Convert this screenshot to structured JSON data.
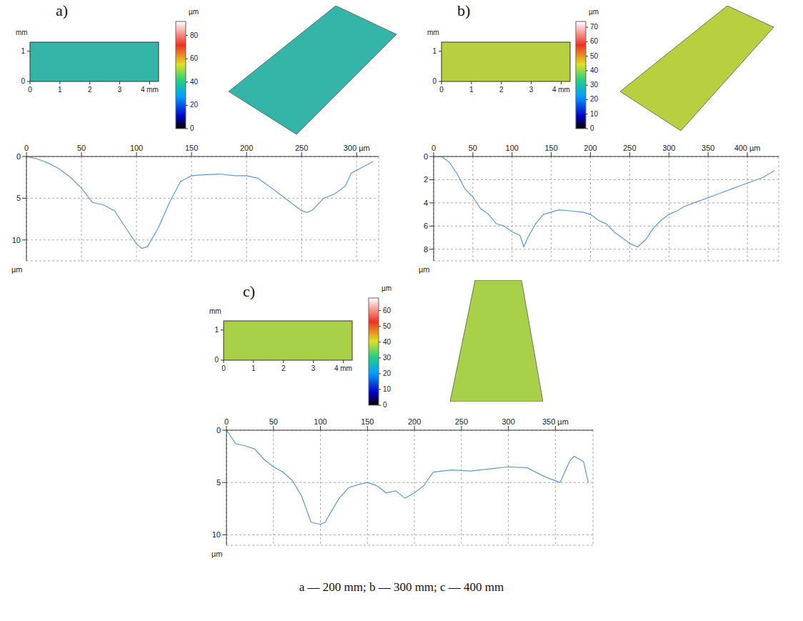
{
  "chart_data": [
    {
      "type": "line",
      "title": "a)",
      "color": "#5b9bd5",
      "grid": true,
      "y_label": "µm",
      "x": [
        0,
        10,
        20,
        30,
        40,
        50,
        60,
        70,
        80,
        90,
        100,
        105,
        110,
        120,
        130,
        140,
        150,
        160,
        175,
        190,
        200,
        210,
        220,
        230,
        240,
        250,
        255,
        260,
        270,
        280,
        290,
        295,
        305,
        315
      ],
      "values": [
        0,
        0.3,
        0.8,
        1.5,
        2.5,
        3.8,
        5.5,
        5.8,
        6.5,
        8.5,
        10.5,
        11,
        10.8,
        8.5,
        5.5,
        3,
        2.3,
        2.2,
        2.1,
        2.3,
        2.3,
        2.6,
        3.5,
        4.5,
        5.5,
        6.5,
        6.7,
        6.4,
        5,
        4.5,
        3.5,
        2,
        1.3,
        0.6
      ],
      "xlim": [
        0,
        320
      ],
      "xticks": [
        0,
        50,
        100,
        150,
        200,
        250,
        {
          "value": 300,
          "label": "300 µm"
        }
      ],
      "ylim": [
        0,
        12.5
      ],
      "yticks": [
        0,
        5,
        10
      ],
      "map": {
        "xlim": [
          0,
          4.3
        ],
        "xticks": [
          0,
          1,
          2,
          3,
          {
            "value": 4,
            "label": "4 mm"
          }
        ],
        "ylim": [
          0,
          1.3
        ],
        "yticks": [
          0,
          1
        ],
        "y_label": "mm",
        "color": "#35b5a8",
        "colorbar": {
          "label": "µm",
          "range": [
            0,
            92
          ],
          "ticks": [
            0,
            20,
            40,
            60,
            80
          ]
        }
      }
    },
    {
      "type": "line",
      "title": "b)",
      "color": "#5b9bd5",
      "grid": true,
      "y_label": "µm",
      "x": [
        0,
        10,
        20,
        30,
        40,
        50,
        60,
        70,
        80,
        90,
        100,
        110,
        115,
        120,
        130,
        140,
        150,
        160,
        175,
        190,
        200,
        210,
        220,
        230,
        240,
        250,
        260,
        270,
        280,
        290,
        300,
        310,
        320,
        340,
        360,
        380,
        400,
        420,
        435
      ],
      "values": [
        0,
        0,
        0.5,
        1.5,
        2.8,
        3.5,
        4.5,
        5,
        5.8,
        6,
        6.5,
        6.8,
        7.8,
        7,
        5.8,
        5,
        4.8,
        4.6,
        4.7,
        4.8,
        5,
        5.5,
        5.8,
        6.5,
        7,
        7.5,
        7.8,
        7.2,
        6.2,
        5.5,
        5,
        4.7,
        4.3,
        3.8,
        3.3,
        2.8,
        2.3,
        1.8,
        1.2
      ],
      "xlim": [
        0,
        440
      ],
      "xticks": [
        0,
        50,
        100,
        150,
        200,
        250,
        300,
        350,
        {
          "value": 400,
          "label": "400 µm"
        }
      ],
      "ylim": [
        0,
        9
      ],
      "yticks": [
        0,
        2,
        4,
        6,
        8
      ],
      "map": {
        "xlim": [
          0,
          4.3
        ],
        "xticks": [
          0,
          1,
          2,
          3,
          {
            "value": 4,
            "label": "4 mm"
          }
        ],
        "ylim": [
          0,
          1.3
        ],
        "yticks": [
          0,
          1
        ],
        "y_label": "mm",
        "color": "#b8d040",
        "colorbar": {
          "label": "µm",
          "range": [
            0,
            74
          ],
          "ticks": [
            0,
            10,
            20,
            30,
            40,
            50,
            60,
            70
          ]
        }
      }
    },
    {
      "type": "line",
      "title": "c)",
      "color": "#5b9bd5",
      "grid": true,
      "y_label": "µm",
      "x": [
        0,
        10,
        20,
        30,
        40,
        50,
        60,
        70,
        80,
        90,
        100,
        105,
        110,
        120,
        130,
        140,
        150,
        160,
        170,
        180,
        190,
        200,
        210,
        220,
        240,
        260,
        280,
        300,
        320,
        340,
        355,
        365,
        370,
        380,
        385
      ],
      "values": [
        0,
        1.3,
        1.5,
        1.8,
        2.8,
        3.5,
        4,
        4.8,
        6.3,
        8.8,
        9,
        8.8,
        8,
        6.5,
        5.5,
        5.2,
        5,
        5.3,
        6,
        5.8,
        6.5,
        6,
        5.3,
        4,
        3.8,
        3.9,
        3.7,
        3.5,
        3.6,
        4.5,
        5,
        3,
        2.5,
        3,
        5
      ],
      "xlim": [
        0,
        390
      ],
      "xticks": [
        0,
        50,
        100,
        150,
        200,
        250,
        300,
        {
          "value": 350,
          "label": "350 µm"
        }
      ],
      "ylim": [
        0,
        11
      ],
      "yticks": [
        0,
        5,
        10
      ],
      "map": {
        "xlim": [
          0,
          4.3
        ],
        "xticks": [
          0,
          1,
          2,
          3,
          {
            "value": 4,
            "label": "4 mm"
          }
        ],
        "ylim": [
          0,
          1.3
        ],
        "yticks": [
          0,
          1
        ],
        "y_label": "mm",
        "color": "#a8d048",
        "colorbar": {
          "label": "µm",
          "range": [
            0,
            68
          ],
          "ticks": [
            0,
            10,
            20,
            30,
            40,
            50,
            60
          ]
        }
      }
    }
  ],
  "caption": "a — 200 mm; b — 300 mm; c — 400 mm"
}
